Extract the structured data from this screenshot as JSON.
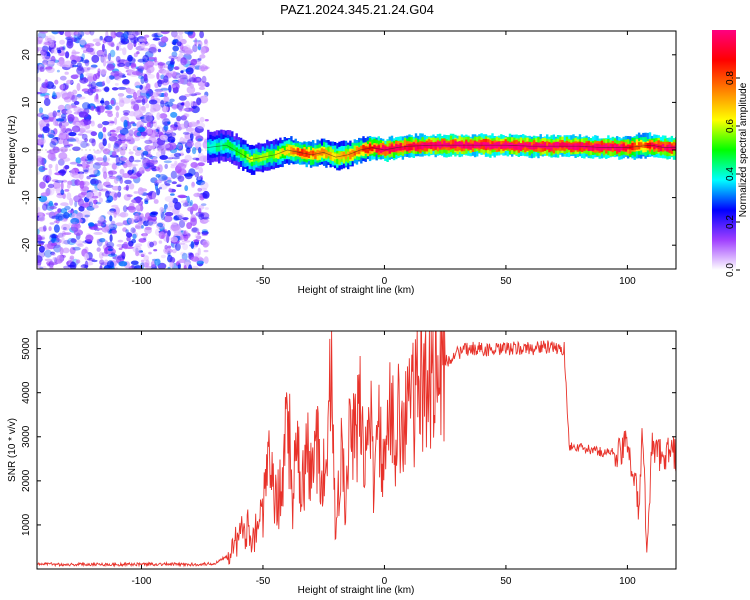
{
  "title": "PAZ1.2024.345.21.24.G04",
  "chart_data": [
    {
      "type": "heatmap",
      "xlabel": "Height of straight line (km)",
      "ylabel": "Frequency (Hz)",
      "xlim": [
        -143,
        120
      ],
      "ylim": [
        -25,
        25
      ],
      "xticks": [
        -100,
        -50,
        0,
        50,
        100
      ],
      "yticks": [
        -20,
        -10,
        0,
        10,
        20
      ],
      "colorbar": {
        "label": "Normalized spectral amplitude",
        "range": [
          0,
          1
        ],
        "ticks": [
          "0.0",
          "0.2",
          "0.4",
          "0.6",
          "0.8"
        ],
        "colormap": [
          "#ffffff",
          "#a040ff",
          "#0000ff",
          "#00ffff",
          "#00ff00",
          "#ffff00",
          "#ff8000",
          "#ff0000",
          "#ff0080"
        ]
      },
      "noise_region_x": [
        -143,
        -73
      ],
      "ridge": {
        "x": [
          -73,
          -65,
          -60,
          -55,
          -50,
          -45,
          -40,
          -35,
          -30,
          -25,
          -20,
          -15,
          -10,
          -5,
          0,
          5,
          10,
          20,
          30,
          40,
          50,
          60,
          70,
          80,
          90,
          95,
          100,
          105,
          110,
          115,
          120
        ],
        "frequency": [
          0.5,
          1.0,
          -0.5,
          -2.0,
          -1.5,
          -1.0,
          0.0,
          -0.5,
          -1.0,
          -0.5,
          -1.5,
          -1.0,
          0.0,
          0.5,
          0.0,
          0.5,
          0.8,
          1.0,
          1.0,
          1.0,
          1.0,
          0.8,
          0.8,
          0.8,
          0.5,
          0.5,
          0.5,
          0.8,
          1.0,
          0.5,
          0.5
        ],
        "strength": [
          0.35,
          0.4,
          0.45,
          0.55,
          0.5,
          0.55,
          0.65,
          0.8,
          0.75,
          0.7,
          0.6,
          0.7,
          0.75,
          0.85,
          0.95,
          0.9,
          0.9,
          0.95,
          0.95,
          0.95,
          0.95,
          0.95,
          0.95,
          0.95,
          0.95,
          0.95,
          0.9,
          0.7,
          0.9,
          0.95,
          0.95
        ]
      }
    },
    {
      "type": "line",
      "xlabel": "Height of straight line (km)",
      "ylabel": "SNR (10 * v/v)",
      "xlim": [
        -143,
        120
      ],
      "ylim": [
        0,
        5400
      ],
      "xticks": [
        -100,
        -50,
        0,
        50,
        100
      ],
      "yticks": [
        1000,
        2000,
        3000,
        4000,
        5000
      ],
      "color": "#e8322a",
      "x": [
        -143,
        -130,
        -120,
        -110,
        -100,
        -90,
        -80,
        -70,
        -65,
        -60,
        -57,
        -54,
        -50,
        -47,
        -45,
        -42,
        -40,
        -38,
        -36,
        -34,
        -32,
        -30,
        -28,
        -25,
        -22,
        -20,
        -18,
        -16,
        -14,
        -12,
        -10,
        -8,
        -6,
        -4,
        -2,
        0,
        2,
        4,
        6,
        8,
        10,
        12,
        15,
        20,
        25,
        30,
        35,
        40,
        45,
        50,
        55,
        60,
        65,
        70,
        74,
        76,
        80,
        85,
        90,
        95,
        98,
        100,
        103,
        105,
        106,
        108,
        110,
        112,
        115,
        120
      ],
      "snr": [
        120,
        100,
        110,
        100,
        110,
        110,
        100,
        120,
        300,
        700,
        900,
        800,
        1300,
        2500,
        1500,
        1800,
        4200,
        1400,
        2700,
        1600,
        2800,
        1900,
        3000,
        2100,
        4400,
        500,
        3000,
        1300,
        3300,
        2800,
        3600,
        2600,
        3500,
        1800,
        3300,
        2000,
        3500,
        3000,
        4000,
        2800,
        4200,
        3700,
        4300,
        4500,
        4700,
        4900,
        5000,
        5000,
        4950,
        5000,
        5000,
        5000,
        5050,
        5000,
        5000,
        2800,
        2750,
        2700,
        2650,
        2650,
        2600,
        3000,
        2000,
        1200,
        3500,
        400,
        2800,
        2600,
        2650,
        2600
      ]
    }
  ]
}
